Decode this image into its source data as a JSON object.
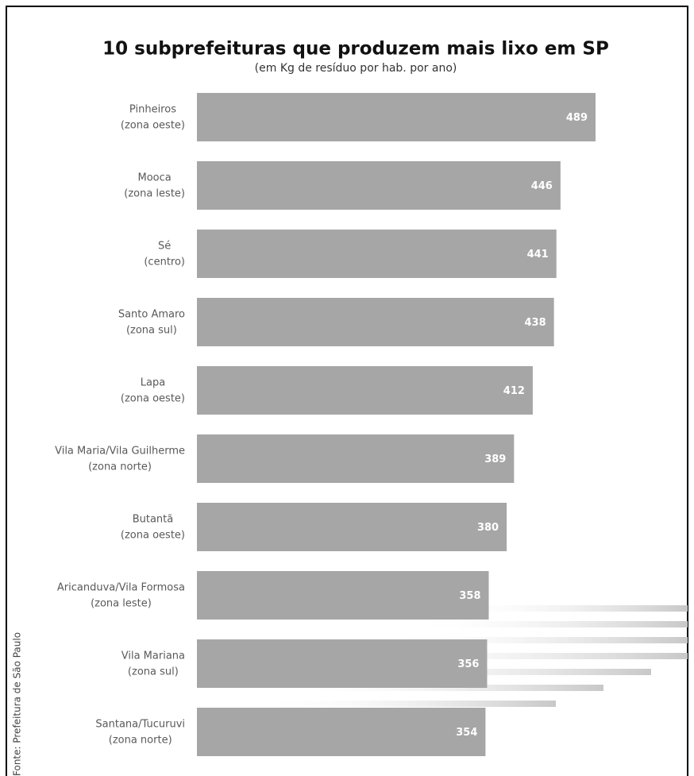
{
  "chart_data": {
    "type": "bar",
    "orientation": "horizontal",
    "title": "10 subprefeituras que produzem mais lixo em SP",
    "subtitle": "(em Kg de resíduo por hab. por ano)",
    "source": "Fonte: Prefeitura de São Paulo",
    "categories": [
      [
        "Pinheiros",
        "(zona oeste)"
      ],
      [
        "Mooca",
        "(zona leste)"
      ],
      [
        "Sé",
        "(centro)"
      ],
      [
        "Santo Amaro",
        "(zona sul)"
      ],
      [
        "Lapa",
        "(zona oeste)"
      ],
      [
        "Vila Maria/Vila Guilherme",
        "(zona norte)"
      ],
      [
        "Butantã",
        "(zona oeste)"
      ],
      [
        "Aricanduva/Vila Formosa",
        "(zona leste)"
      ],
      [
        "Vila Mariana",
        "(zona sul)"
      ],
      [
        "Santana/Tucuruvi",
        "(zona norte)"
      ]
    ],
    "values": [
      489,
      446,
      441,
      438,
      412,
      389,
      380,
      358,
      356,
      354
    ],
    "color": "#a6a6a6"
  }
}
